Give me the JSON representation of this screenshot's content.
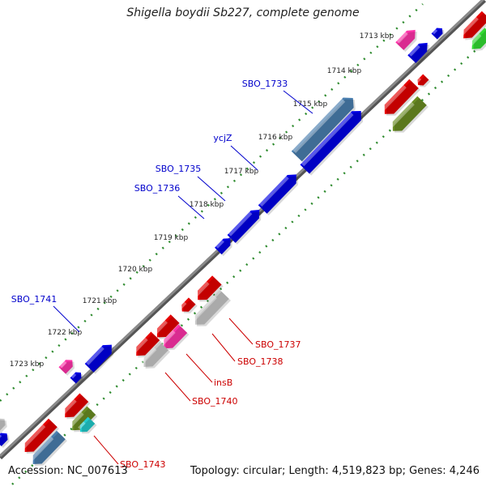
{
  "title": "Shigella boydii Sb227, complete genome",
  "footer": {
    "accession": "Accession: NC_007613",
    "topology": "Topology: circular; Length: 4,519,823 bp; Genes: 4,246"
  },
  "colors": {
    "backbone": "#8a8a8a",
    "dots": "#2e8b2e",
    "label_forward": "#0000cc",
    "label_reverse": "#cc0000",
    "blue": "#0000e6",
    "steelblue": "#4a7fb0",
    "red": "#e60000",
    "pink": "#ff33aa",
    "olive": "#6b8e23",
    "green": "#33dd33",
    "gray": "#c8c8c8",
    "cyan": "#22cccc"
  },
  "ticks": [
    {
      "label": "1713 kbp"
    },
    {
      "label": "1714 kbp"
    },
    {
      "label": "1715 kbp"
    },
    {
      "label": "1716 kbp"
    },
    {
      "label": "1717 kbp"
    },
    {
      "label": "1718 kbp"
    },
    {
      "label": "1719 kbp"
    },
    {
      "label": "1720 kbp"
    },
    {
      "label": "1721 kbp"
    },
    {
      "label": "1722 kbp"
    },
    {
      "label": "1723 kbp"
    }
  ],
  "gene_labels": [
    {
      "text": "SBO_1733",
      "strand": "forward"
    },
    {
      "text": "ycjZ",
      "strand": "forward"
    },
    {
      "text": "SBO_1735",
      "strand": "forward"
    },
    {
      "text": "SBO_1736",
      "strand": "forward"
    },
    {
      "text": "SBO_1741",
      "strand": "forward"
    },
    {
      "text": "SBO_1737",
      "strand": "reverse"
    },
    {
      "text": "SBO_1738",
      "strand": "reverse"
    },
    {
      "text": "insB",
      "strand": "reverse"
    },
    {
      "text": "SBO_1740",
      "strand": "reverse"
    },
    {
      "text": "SBO_1743",
      "strand": "reverse"
    }
  ]
}
